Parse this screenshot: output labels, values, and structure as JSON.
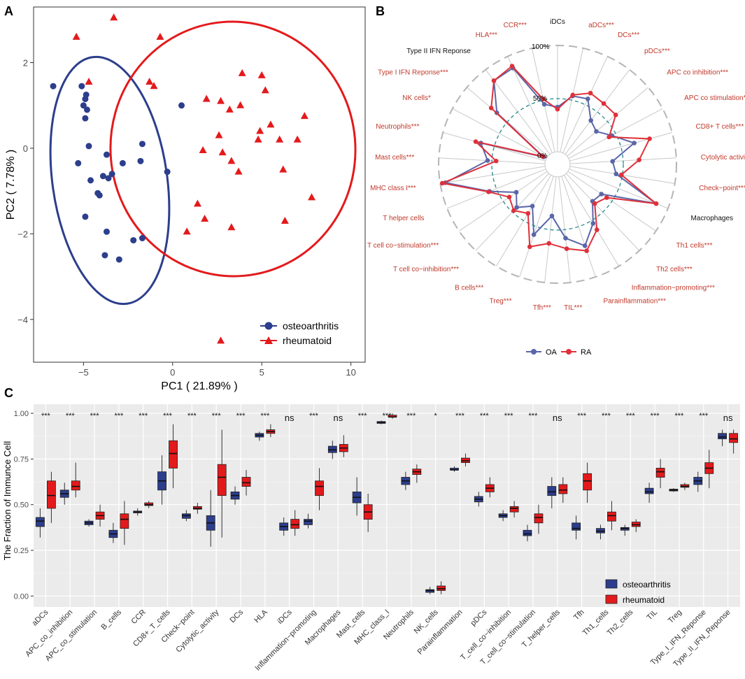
{
  "panels": {
    "a": "A",
    "b": "B",
    "c": "C"
  },
  "colors": {
    "oa": "#2c3e8c",
    "ra": "#e31a1c",
    "oa_radar": "#5a66a8",
    "ra_radar": "#e0303a",
    "panel_bg": "#ebebeb",
    "grid": "#ffffff",
    "tick_text": "#4d4d4d",
    "label_red": "#c0392b",
    "teal": "#1f8a8a"
  },
  "chart_data": [
    {
      "type": "scatter",
      "title": "",
      "xlabel": "PC1 ( 21.89% )",
      "ylabel": "PC2 ( 7.78% )",
      "xlim": [
        -7.8,
        10.8
      ],
      "ylim": [
        -5.0,
        3.3
      ],
      "xticks": [
        -5,
        0,
        5,
        10
      ],
      "yticks": [
        -4,
        -2,
        0,
        2
      ],
      "tick_labels_x": [
        "−5",
        "0",
        "5",
        "10"
      ],
      "tick_labels_y": [
        "−4",
        "−2",
        "0",
        "2"
      ],
      "legend": [
        "osteoarthritis",
        "rheumatoid"
      ],
      "series": [
        {
          "name": "osteoarthritis",
          "marker": "circle",
          "points": [
            [
              -6.7,
              1.45
            ],
            [
              -5.1,
              1.45
            ],
            [
              -4.85,
              1.25
            ],
            [
              -4.9,
              1.15
            ],
            [
              -5.0,
              1.0
            ],
            [
              -4.8,
              0.9
            ],
            [
              -4.9,
              0.7
            ],
            [
              0.5,
              1.0
            ],
            [
              -5.3,
              -0.35
            ],
            [
              -4.6,
              -0.75
            ],
            [
              -4.7,
              0.05
            ],
            [
              -4.2,
              -1.05
            ],
            [
              -4.1,
              -1.1
            ],
            [
              -3.9,
              -0.65
            ],
            [
              -3.7,
              -0.15
            ],
            [
              -3.4,
              -0.6
            ],
            [
              -3.6,
              -0.7
            ],
            [
              -1.7,
              0.1
            ],
            [
              -1.8,
              -0.3
            ],
            [
              -2.8,
              -0.35
            ],
            [
              -0.3,
              -0.55
            ],
            [
              -4.9,
              -1.6
            ],
            [
              -3.7,
              -1.95
            ],
            [
              -2.2,
              -2.15
            ],
            [
              -1.7,
              -2.1
            ],
            [
              -3.0,
              -2.6
            ],
            [
              -3.8,
              -2.5
            ]
          ]
        },
        {
          "name": "rheumatoid",
          "marker": "triangle",
          "points": [
            [
              -3.3,
              3.05
            ],
            [
              -5.4,
              2.6
            ],
            [
              -0.7,
              2.6
            ],
            [
              -4.7,
              1.55
            ],
            [
              -1.3,
              1.55
            ],
            [
              -1.05,
              1.45
            ],
            [
              1.9,
              1.15
            ],
            [
              3.9,
              1.75
            ],
            [
              5.0,
              1.7
            ],
            [
              5.2,
              1.35
            ],
            [
              2.7,
              1.1
            ],
            [
              3.2,
              0.9
            ],
            [
              3.8,
              1.0
            ],
            [
              7.4,
              0.75
            ],
            [
              2.6,
              0.3
            ],
            [
              5.5,
              0.55
            ],
            [
              4.9,
              0.4
            ],
            [
              4.8,
              0.2
            ],
            [
              6.0,
              0.2
            ],
            [
              7.0,
              0.2
            ],
            [
              1.7,
              -0.05
            ],
            [
              2.8,
              -0.1
            ],
            [
              3.3,
              -0.3
            ],
            [
              3.7,
              -0.55
            ],
            [
              6.2,
              -0.5
            ],
            [
              1.4,
              -1.3
            ],
            [
              1.8,
              -1.65
            ],
            [
              3.3,
              -1.85
            ],
            [
              0.8,
              -1.95
            ],
            [
              6.3,
              -1.7
            ],
            [
              7.8,
              -1.15
            ],
            [
              2.7,
              -4.5
            ]
          ]
        }
      ],
      "ellipses": [
        "osteoarthritis 95% ellipse",
        "rheumatoid 95% ellipse"
      ]
    },
    {
      "type": "radar",
      "title": "",
      "rlim": [
        "0%",
        "50%",
        "100%"
      ],
      "legend": [
        "OA",
        "RA"
      ],
      "categories": [
        "iDCs",
        "aDCs***",
        "DCs***",
        "pDCs***",
        "APC co inhibition***",
        "APC co stimulation***",
        "CD8+ T cells***",
        "Cytolytic activity***",
        "Check−point***",
        "Macrophages",
        "Th1 cells***",
        "Th2 cells***",
        "Inflammation−promoting***",
        "Parainflammation***",
        "TIL***",
        "Tfh***",
        "Treg***",
        "B cells***",
        "T cell co−inhibition***",
        "T cell co−stimulation***",
        "T helper cells",
        "MHC class I***",
        "Mast cells***",
        "Neutrophils***",
        "NK cells*",
        "Type I IFN Reponse***",
        "Type II IFN Reponse",
        "HLA***",
        "CCR***"
      ],
      "label_significant": [
        false,
        true,
        true,
        true,
        true,
        true,
        true,
        true,
        true,
        false,
        true,
        true,
        true,
        true,
        true,
        true,
        true,
        true,
        true,
        true,
        true,
        true,
        true,
        true,
        true,
        true,
        false,
        true,
        true
      ],
      "series": [
        {
          "name": "OA",
          "values": [
            0.42,
            0.54,
            0.56,
            0.4,
            0.36,
            0.46,
            0.63,
            0.4,
            0.44,
            0.88,
            0.38,
            0.36,
            0.53,
            0.69,
            0.58,
            0.37,
            0.58,
            0.34,
            0.44,
            0.35,
            0.57,
            0.95,
            0.54,
            0.63,
            0.03,
            0.63,
            0.87,
            0.88,
            0.46
          ]
        },
        {
          "name": "RA",
          "values": [
            0.4,
            0.55,
            0.62,
            0.6,
            0.6,
            0.43,
            0.78,
            0.65,
            0.49,
            0.88,
            0.44,
            0.39,
            0.6,
            0.74,
            0.68,
            0.63,
            0.7,
            0.42,
            0.48,
            0.43,
            0.58,
            0.98,
            0.46,
            0.68,
            0.04,
            0.7,
            0.87,
            0.9,
            0.51
          ]
        }
      ]
    },
    {
      "type": "box",
      "title": "",
      "ylabel": "The Fraction of Immunce Cell",
      "ylim": [
        -0.06,
        1.05
      ],
      "yticks": [
        0.0,
        0.25,
        0.5,
        0.75,
        1.0
      ],
      "tick_labels_y": [
        "0.00",
        "0.25",
        "0.50",
        "0.75",
        "1.00"
      ],
      "legend": [
        "osteoarthritis",
        "rheumatoid"
      ],
      "categories": [
        "aDCs",
        "APC_co_inhibition",
        "APC_co_stimulation",
        "B_cells",
        "CCR",
        "CD8+_T_cells",
        "Check−point",
        "Cytolytic_activity",
        "DCs",
        "HLA",
        "iDCs",
        "Inflammation−promoting",
        "Macrophages",
        "Mast_cells",
        "MHC_class_I",
        "Neutrophils",
        "NK_cells",
        "Parainflammation",
        "pDCs",
        "T_cell_co−inhibition",
        "T_cell_co−stimulation",
        "T_helper_cells",
        "Tfh",
        "Th1_cells",
        "Th2_cells",
        "TIL",
        "Treg",
        "Type_I_IFN_Reponse",
        "Type_II_IFN_Reponse"
      ],
      "significance": [
        "***",
        "***",
        "***",
        "***",
        "***",
        "***",
        "***",
        "***",
        "***",
        "***",
        "ns",
        "***",
        "ns",
        "***",
        "***",
        "***",
        "*",
        "***",
        "***",
        "***",
        "***",
        "ns",
        "***",
        "***",
        "***",
        "***",
        "***",
        "***",
        "ns"
      ],
      "series": [
        {
          "name": "osteoarthritis",
          "boxes": [
            [
              0.32,
              0.38,
              0.41,
              0.43,
              0.48
            ],
            [
              0.5,
              0.54,
              0.56,
              0.58,
              0.62
            ],
            [
              0.38,
              0.39,
              0.4,
              0.41,
              0.42
            ],
            [
              0.29,
              0.32,
              0.34,
              0.36,
              0.4
            ],
            [
              0.44,
              0.455,
              0.46,
              0.465,
              0.48
            ],
            [
              0.5,
              0.58,
              0.63,
              0.68,
              0.77
            ],
            [
              0.41,
              0.425,
              0.44,
              0.45,
              0.47
            ],
            [
              0.27,
              0.36,
              0.4,
              0.44,
              0.58
            ],
            [
              0.5,
              0.53,
              0.55,
              0.57,
              0.6
            ],
            [
              0.85,
              0.87,
              0.88,
              0.89,
              0.9
            ],
            [
              0.33,
              0.36,
              0.38,
              0.4,
              0.43
            ],
            [
              0.37,
              0.39,
              0.41,
              0.42,
              0.45
            ],
            [
              0.75,
              0.785,
              0.8,
              0.82,
              0.85
            ],
            [
              0.44,
              0.51,
              0.54,
              0.57,
              0.65
            ],
            [
              0.94,
              0.945,
              0.95,
              0.955,
              0.96
            ],
            [
              0.58,
              0.61,
              0.63,
              0.65,
              0.68
            ],
            [
              0.01,
              0.02,
              0.03,
              0.035,
              0.05
            ],
            [
              0.68,
              0.69,
              0.69,
              0.7,
              0.71
            ],
            [
              0.49,
              0.515,
              0.53,
              0.545,
              0.57
            ],
            [
              0.41,
              0.43,
              0.44,
              0.45,
              0.47
            ],
            [
              0.3,
              0.33,
              0.34,
              0.36,
              0.39
            ],
            [
              0.48,
              0.55,
              0.57,
              0.6,
              0.65
            ],
            [
              0.31,
              0.36,
              0.37,
              0.4,
              0.44
            ],
            [
              0.31,
              0.345,
              0.355,
              0.37,
              0.39
            ],
            [
              0.33,
              0.36,
              0.37,
              0.375,
              0.39
            ],
            [
              0.51,
              0.56,
              0.57,
              0.59,
              0.62
            ],
            [
              0.57,
              0.575,
              0.58,
              0.585,
              0.59
            ],
            [
              0.57,
              0.61,
              0.63,
              0.65,
              0.68
            ],
            [
              0.82,
              0.86,
              0.87,
              0.89,
              0.91
            ]
          ]
        },
        {
          "name": "rheumatoid",
          "boxes": [
            [
              0.4,
              0.48,
              0.55,
              0.63,
              0.68
            ],
            [
              0.54,
              0.58,
              0.6,
              0.63,
              0.73
            ],
            [
              0.38,
              0.42,
              0.44,
              0.46,
              0.5
            ],
            [
              0.28,
              0.37,
              0.42,
              0.45,
              0.52
            ],
            [
              0.48,
              0.495,
              0.5,
              0.51,
              0.52
            ],
            [
              0.59,
              0.7,
              0.78,
              0.85,
              0.94
            ],
            [
              0.45,
              0.475,
              0.48,
              0.49,
              0.51
            ],
            [
              0.32,
              0.55,
              0.65,
              0.72,
              0.91
            ],
            [
              0.55,
              0.6,
              0.62,
              0.65,
              0.69
            ],
            [
              0.87,
              0.89,
              0.9,
              0.91,
              0.94
            ],
            [
              0.33,
              0.37,
              0.39,
              0.42,
              0.47
            ],
            [
              0.47,
              0.55,
              0.6,
              0.63,
              0.7
            ],
            [
              0.76,
              0.79,
              0.81,
              0.83,
              0.88
            ],
            [
              0.35,
              0.42,
              0.46,
              0.5,
              0.56
            ],
            [
              0.97,
              0.98,
              0.98,
              0.99,
              1.0
            ],
            [
              0.62,
              0.665,
              0.68,
              0.695,
              0.72
            ],
            [
              0.01,
              0.03,
              0.04,
              0.055,
              0.08
            ],
            [
              0.71,
              0.73,
              0.74,
              0.755,
              0.78
            ],
            [
              0.54,
              0.57,
              0.59,
              0.61,
              0.65
            ],
            [
              0.43,
              0.46,
              0.48,
              0.49,
              0.52
            ],
            [
              0.34,
              0.4,
              0.43,
              0.45,
              0.5
            ],
            [
              0.51,
              0.56,
              0.58,
              0.61,
              0.65
            ],
            [
              0.51,
              0.58,
              0.63,
              0.67,
              0.73
            ],
            [
              0.36,
              0.41,
              0.44,
              0.46,
              0.52
            ],
            [
              0.35,
              0.38,
              0.39,
              0.405,
              0.42
            ],
            [
              0.59,
              0.65,
              0.68,
              0.7,
              0.75
            ],
            [
              0.58,
              0.595,
              0.6,
              0.61,
              0.62
            ],
            [
              0.59,
              0.67,
              0.7,
              0.73,
              0.8
            ],
            [
              0.78,
              0.84,
              0.86,
              0.89,
              0.91
            ]
          ]
        }
      ]
    }
  ]
}
